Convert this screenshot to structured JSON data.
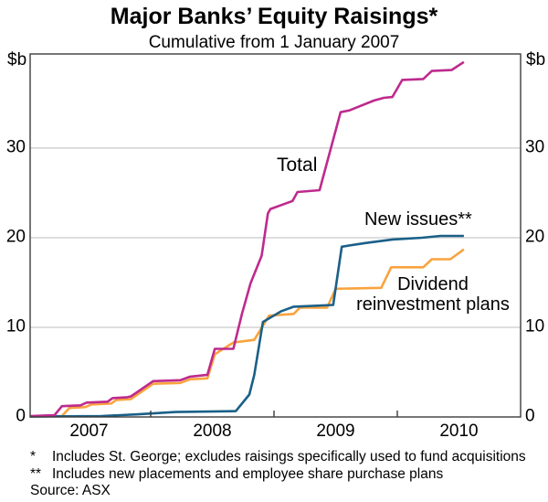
{
  "header": {
    "title": "Major Banks’ Equity Raisings*",
    "subtitle": "Cumulative from 1 January 2007",
    "unit_left": "$b",
    "unit_right": "$b"
  },
  "labels": {
    "total": "Total",
    "new_issues": "New issues**",
    "drp_line1": "Dividend",
    "drp_line2": "reinvestment plans"
  },
  "footnotes": [
    {
      "marker": "*",
      "text": "Includes St. George; excludes raisings specifically used to fund acquisitions"
    },
    {
      "marker": "**",
      "text": "Includes new placements and employee share purchase plans"
    }
  ],
  "source": "Source: ASX",
  "chart_data": {
    "type": "line",
    "title": "Major Banks’ Equity Raisings*",
    "subtitle": "Cumulative from 1 January 2007",
    "ylabel": "$b",
    "xlim": [
      2007,
      2011
    ],
    "ylim": [
      0,
      40.5
    ],
    "grid": "horizontal",
    "y_gridlines": [
      10,
      20,
      30
    ],
    "y_tick_labels": [
      0,
      10,
      20,
      30
    ],
    "x_ticks": [
      2008,
      2009,
      2010
    ],
    "x_year_labels": [
      {
        "label": "2007",
        "center": 2007.5
      },
      {
        "label": "2008",
        "center": 2008.5
      },
      {
        "label": "2009",
        "center": 2009.5
      },
      {
        "label": "2010",
        "center": 2010.5
      }
    ],
    "colors": {
      "grid": "#c9c9c9",
      "frame": "#3c3c3c"
    },
    "series": [
      {
        "name": "Dividend reinvestment plans",
        "color": "#f9a33f",
        "points": [
          [
            2007.02,
            0.05
          ],
          [
            2007.28,
            0.1
          ],
          [
            2007.34,
            1.0
          ],
          [
            2007.47,
            1.1
          ],
          [
            2007.52,
            1.4
          ],
          [
            2007.68,
            1.5
          ],
          [
            2007.72,
            1.9
          ],
          [
            2007.84,
            2.0
          ],
          [
            2008.02,
            3.7
          ],
          [
            2008.24,
            3.8
          ],
          [
            2008.32,
            4.2
          ],
          [
            2008.46,
            4.3
          ],
          [
            2008.52,
            7.0
          ],
          [
            2008.67,
            8.3
          ],
          [
            2008.84,
            8.6
          ],
          [
            2008.96,
            11.3
          ],
          [
            2009.16,
            11.5
          ],
          [
            2009.21,
            12.2
          ],
          [
            2009.43,
            12.2
          ],
          [
            2009.5,
            14.3
          ],
          [
            2009.87,
            14.4
          ],
          [
            2009.95,
            16.7
          ],
          [
            2010.21,
            16.7
          ],
          [
            2010.28,
            17.6
          ],
          [
            2010.43,
            17.6
          ],
          [
            2010.54,
            18.7
          ]
        ]
      },
      {
        "name": "New issues**",
        "color": "#1a6088",
        "points": [
          [
            2007.02,
            0.05
          ],
          [
            2007.6,
            0.1
          ],
          [
            2007.9,
            0.3
          ],
          [
            2008.02,
            0.4
          ],
          [
            2008.2,
            0.55
          ],
          [
            2008.69,
            0.65
          ],
          [
            2008.8,
            2.5
          ],
          [
            2008.84,
            4.7
          ],
          [
            2008.91,
            10.6
          ],
          [
            2009.06,
            11.8
          ],
          [
            2009.16,
            12.3
          ],
          [
            2009.48,
            12.5
          ],
          [
            2009.55,
            19.0
          ],
          [
            2009.74,
            19.4
          ],
          [
            2009.96,
            19.8
          ],
          [
            2010.2,
            20.0
          ],
          [
            2010.35,
            20.2
          ],
          [
            2010.54,
            20.2
          ]
        ]
      },
      {
        "name": "Total",
        "color": "#be2a8e",
        "points": [
          [
            2007.02,
            0.1
          ],
          [
            2007.22,
            0.2
          ],
          [
            2007.28,
            1.2
          ],
          [
            2007.43,
            1.3
          ],
          [
            2007.48,
            1.6
          ],
          [
            2007.65,
            1.7
          ],
          [
            2007.69,
            2.1
          ],
          [
            2007.81,
            2.2
          ],
          [
            2007.84,
            2.3
          ],
          [
            2008.02,
            4.0
          ],
          [
            2008.24,
            4.1
          ],
          [
            2008.32,
            4.5
          ],
          [
            2008.46,
            4.7
          ],
          [
            2008.52,
            7.6
          ],
          [
            2008.67,
            7.6
          ],
          [
            2008.74,
            11.5
          ],
          [
            2008.81,
            14.9
          ],
          [
            2008.9,
            18.0
          ],
          [
            2008.95,
            22.7
          ],
          [
            2008.97,
            23.2
          ],
          [
            2009.15,
            24.1
          ],
          [
            2009.19,
            25.1
          ],
          [
            2009.37,
            25.3
          ],
          [
            2009.54,
            34.0
          ],
          [
            2009.61,
            34.2
          ],
          [
            2009.81,
            35.3
          ],
          [
            2009.89,
            35.6
          ],
          [
            2009.96,
            35.7
          ],
          [
            2010.04,
            37.6
          ],
          [
            2010.21,
            37.7
          ],
          [
            2010.28,
            38.6
          ],
          [
            2010.44,
            38.7
          ],
          [
            2010.54,
            39.6
          ]
        ]
      }
    ]
  }
}
